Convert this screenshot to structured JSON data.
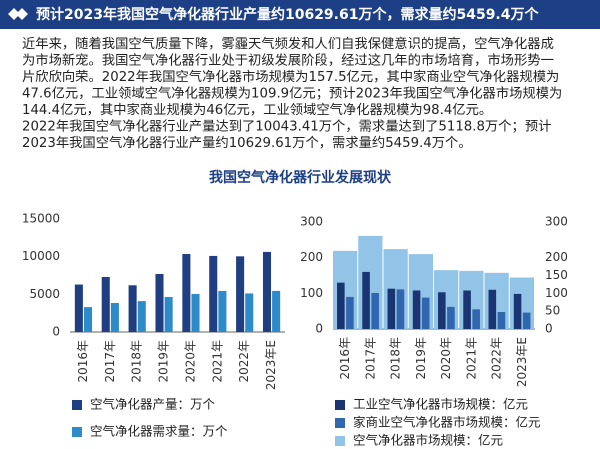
{
  "header": {
    "title": "预计2023年我国空气净化器行业产量约10629.61万个，需求量约5459.4万个"
  },
  "body": {
    "lines": [
      "近年来，随着我国空气质量下降，雾霾天气频发和人们自我保健意识的提高，空气净化器成",
      "为市场新宠。我国空气净化器行业处于初级发展阶段，经过这几年的市场培育，市场形势一",
      "片欣欣向荣。2022年我国空气净化器市场规模为157.5亿元，其中家商业空气净化器规模为",
      "47.6亿元，工业领域空气净化器规模为109.9亿元；预计2023年我国空气净化器市场规模为",
      "144.4亿元，其中家商业规模为46亿元，工业领域空气净化器规模为98.4亿元。",
      "2022年我国空气净化器行业产量达到了10043.41万个，需求量达到了5118.8万个；预计",
      "2023年我国空气净化器行业产量约10629.61万个，需求量约5459.4万个。"
    ]
  },
  "section_title": "我国空气净化器行业发展现状",
  "chart_data": [
    {
      "type": "bar",
      "categories": [
        "2016年",
        "2017年",
        "2018年",
        "2019年",
        "2020年",
        "2021年",
        "2022年",
        "2023年E"
      ],
      "series": [
        {
          "name": "空气净化器产量：万个",
          "color": "#1f3f82",
          "values": [
            6300,
            7300,
            6200,
            7700,
            10350,
            10100,
            10043.41,
            10629.61
          ]
        },
        {
          "name": "空气净化器需求量：万个",
          "color": "#2e8bc9",
          "values": [
            3300,
            3850,
            4100,
            4650,
            5050,
            5450,
            5118.8,
            5459.4
          ]
        }
      ],
      "ylim": [
        0,
        15000
      ],
      "yticks": [
        0,
        5000,
        10000,
        15000
      ]
    },
    {
      "type": "bar",
      "categories": [
        "2016年",
        "2017年",
        "2018年",
        "2019年",
        "2020年",
        "2021年",
        "2022年",
        "2023年E"
      ],
      "series": [
        {
          "name": "工业空气净化器市场规模：亿元",
          "color": "#1a3572",
          "values": [
            130,
            160,
            113,
            108,
            103,
            108,
            109.9,
            98.4
          ]
        },
        {
          "name": "家商业空气净化器市场规模：亿元",
          "color": "#2f66ad",
          "values": [
            90,
            101,
            111,
            88,
            62,
            55,
            47.6,
            46
          ]
        },
        {
          "name": "空气净化器市场规模：亿元",
          "color": "#91c4e6",
          "values": [
            219,
            261,
            224,
            210,
            165,
            163,
            157.5,
            144.4
          ]
        }
      ],
      "ylim": [
        0,
        300
      ],
      "yticks": [
        0,
        100,
        200,
        300
      ],
      "y2lim": [
        0,
        300
      ],
      "y2ticks": [
        0,
        50,
        100,
        150,
        200,
        300
      ]
    }
  ]
}
